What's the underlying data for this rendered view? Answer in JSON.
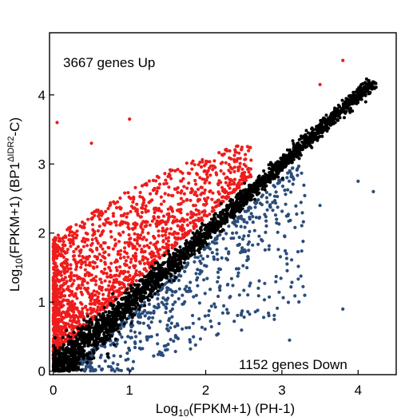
{
  "chart_data": {
    "type": "scatter",
    "xlabel": {
      "main": "Log",
      "sub": "10",
      "rest": "(FPKM+1) (PH-1)"
    },
    "ylabel": {
      "main": "Log",
      "sub": "10",
      "mid": "(FPKM+1) (BP1",
      "sup": "ΔIDR2",
      "rest": "-C)"
    },
    "xlim": [
      -0.05,
      4.5
    ],
    "ylim": [
      -0.05,
      4.9
    ],
    "x_ticks": [
      0,
      1,
      2,
      3,
      4
    ],
    "x_tick_labels": [
      "0",
      "1",
      "2",
      "3",
      "4"
    ],
    "y_ticks": [
      0,
      1,
      2,
      3,
      4
    ],
    "y_tick_labels": [
      "0",
      "1",
      "2",
      "3",
      "4"
    ],
    "grid": false,
    "series": [
      {
        "group": "up",
        "color": "#ee1c1c",
        "count": 3667
      },
      {
        "group": "unchanged",
        "color": "#000000"
      },
      {
        "group": "down",
        "color": "#2b4d7a",
        "count": 1152
      }
    ],
    "annotations": {
      "up": "3667 genes Up",
      "down": "1152 genes Down"
    },
    "notable_points": {
      "up": [
        [
          3.8,
          4.5
        ],
        [
          1.0,
          3.65
        ],
        [
          0.05,
          3.6
        ],
        [
          3.5,
          4.15
        ],
        [
          0.5,
          3.3
        ],
        [
          1.6,
          2.9
        ],
        [
          2.2,
          2.9
        ]
      ],
      "unchanged": [
        [
          4.15,
          4.02
        ],
        [
          4.1,
          3.9
        ],
        [
          3.9,
          3.8
        ],
        [
          3.7,
          3.6
        ],
        [
          3.5,
          3.4
        ]
      ],
      "down": [
        [
          4.2,
          2.6
        ],
        [
          4.0,
          2.75
        ],
        [
          3.5,
          2.4
        ],
        [
          3.3,
          1.1
        ],
        [
          3.8,
          0.9
        ],
        [
          2.9,
          0.75
        ],
        [
          3.1,
          0.45
        ]
      ]
    }
  }
}
